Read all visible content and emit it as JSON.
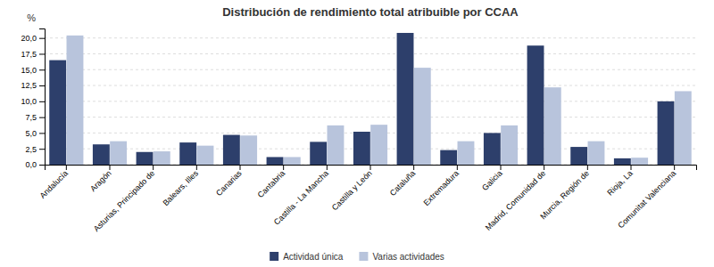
{
  "chart_data": {
    "type": "bar",
    "title": "Distribución de rendimiento total atribuible por CCAA",
    "categories": [
      "Andalucía",
      "Aragón",
      "Asturias, Principado de",
      "Balears, Illes",
      "Canarias",
      "Cantabria",
      "Castilla - La Mancha",
      "Castilla y León",
      "Cataluña",
      "Extremadura",
      "Galicia",
      "Madrid, Comunidad de",
      "Murcia, Región de",
      "Rioja, La",
      "Comunitat Valenciana"
    ],
    "series": [
      {
        "name": "Actividad única",
        "color": "#2d3f6b",
        "values": [
          16.5,
          3.2,
          2.0,
          3.5,
          4.7,
          1.2,
          3.6,
          5.2,
          20.8,
          2.3,
          5.0,
          18.8,
          2.8,
          1.0,
          10.0
        ]
      },
      {
        "name": "Varias actividades",
        "color": "#b8c4dc",
        "values": [
          20.4,
          3.7,
          2.1,
          3.0,
          4.6,
          1.2,
          6.2,
          6.3,
          15.3,
          3.7,
          6.2,
          12.2,
          3.7,
          1.1,
          11.6
        ]
      }
    ],
    "ylabel": "%",
    "ylim": [
      0,
      21.5
    ],
    "yticks": [
      {
        "value": 0.0,
        "label": "0,0"
      },
      {
        "value": 2.5,
        "label": "2,5"
      },
      {
        "value": 5.0,
        "label": "5,0"
      },
      {
        "value": 7.5,
        "label": "7,5"
      },
      {
        "value": 10.0,
        "label": "10,0"
      },
      {
        "value": 12.5,
        "label": "12,5"
      },
      {
        "value": 15.0,
        "label": "15,0"
      },
      {
        "value": 17.5,
        "label": "17,5"
      },
      {
        "value": 20.0,
        "label": "20,0"
      }
    ],
    "grid": true,
    "legend": "bottom"
  }
}
